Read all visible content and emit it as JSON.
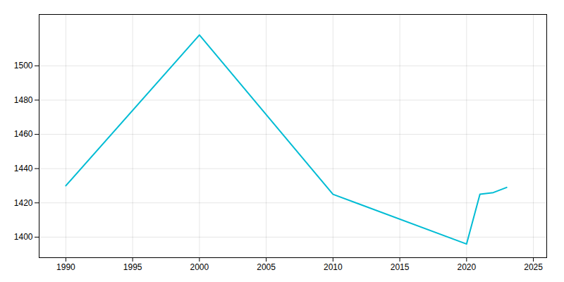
{
  "chart_data": {
    "type": "line",
    "x": [
      1990,
      2000,
      2010,
      2020,
      2021,
      2022,
      2023
    ],
    "values": [
      1430,
      1518,
      1425,
      1396,
      1425,
      1426,
      1429
    ],
    "color": "#00BCD4",
    "xlim": [
      1988,
      2026
    ],
    "xticks": [
      1990,
      1995,
      2000,
      2005,
      2010,
      2015,
      2020,
      2025
    ],
    "ylim": [
      1388,
      1530
    ],
    "yticks": [
      1400,
      1420,
      1440,
      1460,
      1480,
      1500
    ],
    "grid": true
  }
}
